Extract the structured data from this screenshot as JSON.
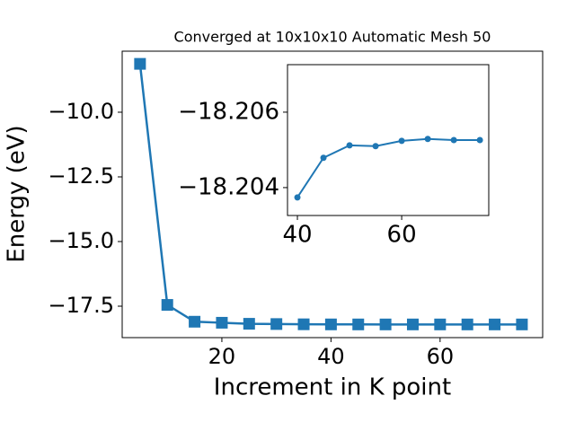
{
  "chart_data": [
    {
      "type": "line",
      "title": "Converged at 10x10x10 Automatic Mesh 50",
      "x_label": "Increment in K point",
      "y_label": "Energy (eV)",
      "x": [
        5,
        10,
        15,
        20,
        25,
        30,
        35,
        40,
        45,
        50,
        55,
        60,
        65,
        70,
        75
      ],
      "values": [
        -8.13,
        -17.45,
        -18.1,
        -18.14,
        -18.18,
        -18.19,
        -18.2,
        -18.20374,
        -18.20479,
        -18.20512,
        -18.2051,
        -18.20524,
        -18.20529,
        -18.20526,
        -18.20526
      ],
      "color": "#1f77b4",
      "marker": "square",
      "xlim": [
        1.73,
        78.8
      ],
      "ylim": [
        -18.715,
        -7.64
      ],
      "xticks": [
        20,
        40,
        60
      ],
      "yticks": [
        {
          "value": -10.0,
          "label": "−10.0"
        },
        {
          "value": -12.5,
          "label": "−12.5"
        },
        {
          "value": -15.0,
          "label": "−15.0"
        },
        {
          "value": -17.5,
          "label": "−17.5"
        }
      ]
    },
    {
      "type": "line",
      "x": [
        40,
        45,
        50,
        55,
        60,
        65,
        70,
        75
      ],
      "values": [
        -18.20374,
        -18.20479,
        -18.20512,
        -18.2051,
        -18.20524,
        -18.20529,
        -18.20526,
        -18.20526
      ],
      "color": "#1f77b4",
      "marker": "circle",
      "xlim": [
        38.1,
        76.7
      ],
      "ylim": [
        -18.20326,
        -18.20726
      ],
      "xticks": [
        40,
        60
      ],
      "yticks": [
        {
          "value": -18.206,
          "label": "−18.206"
        },
        {
          "value": -18.204,
          "label": "−18.204"
        }
      ]
    }
  ]
}
